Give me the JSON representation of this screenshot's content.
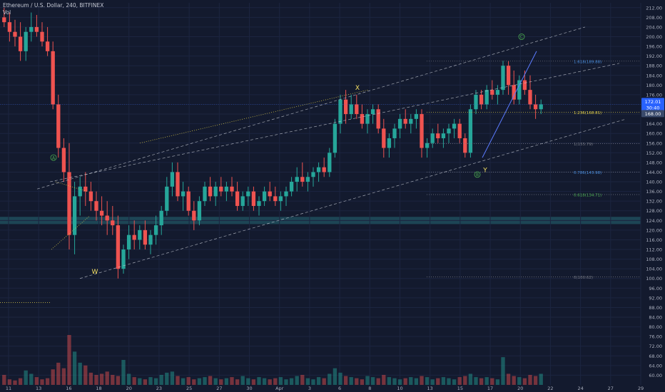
{
  "header": {
    "title": "Ethereum / U.S. Dollar, 240, BITFINEX",
    "indicator": "Vol"
  },
  "chart_data": {
    "type": "candlestick",
    "symbol": "Ethereum / U.S. Dollar",
    "interval": "240",
    "exchange": "BITFINEX",
    "ylim": [
      56,
      214
    ],
    "yticks": [
      60,
      64,
      68,
      72,
      76,
      80,
      84,
      88,
      92,
      96,
      100,
      104,
      108,
      112,
      116,
      120,
      124,
      128,
      132,
      136,
      140,
      144,
      148,
      152,
      156,
      160,
      164,
      168,
      172,
      176,
      180,
      184,
      188,
      192,
      196,
      200,
      204,
      208,
      212
    ],
    "xticks": [
      "11",
      "13",
      "16",
      "18",
      "20",
      "23",
      "25",
      "27",
      "30",
      "Apr",
      "3",
      "6",
      "8",
      "10",
      "13",
      "15",
      "17",
      "20",
      "22",
      "24",
      "27",
      "29"
    ],
    "current_price": "172.01",
    "countdown": "30:40",
    "price_label_2": "168.00",
    "candles_ohlc": [
      [
        208,
        212,
        204,
        206
      ],
      [
        206,
        210,
        198,
        202
      ],
      [
        202,
        207,
        196,
        200
      ],
      [
        200,
        206,
        190,
        194
      ],
      [
        194,
        204,
        190,
        202
      ],
      [
        202,
        210,
        198,
        204
      ],
      [
        204,
        209,
        200,
        202
      ],
      [
        202,
        206,
        196,
        198
      ],
      [
        198,
        204,
        192,
        194
      ],
      [
        194,
        198,
        170,
        172
      ],
      [
        172,
        176,
        150,
        154
      ],
      [
        154,
        158,
        140,
        144
      ],
      [
        144,
        156,
        112,
        118
      ],
      [
        118,
        140,
        110,
        134
      ],
      [
        134,
        142,
        126,
        138
      ],
      [
        138,
        144,
        130,
        136
      ],
      [
        136,
        140,
        128,
        132
      ],
      [
        132,
        136,
        124,
        128
      ],
      [
        128,
        134,
        122,
        126
      ],
      [
        126,
        132,
        118,
        124
      ],
      [
        124,
        130,
        118,
        122
      ],
      [
        122,
        126,
        100,
        104
      ],
      [
        104,
        114,
        102,
        112
      ],
      [
        112,
        122,
        108,
        118
      ],
      [
        118,
        124,
        112,
        116
      ],
      [
        116,
        122,
        112,
        120
      ],
      [
        120,
        124,
        112,
        114
      ],
      [
        114,
        120,
        110,
        118
      ],
      [
        118,
        126,
        114,
        122
      ],
      [
        122,
        130,
        118,
        128
      ],
      [
        128,
        142,
        126,
        138
      ],
      [
        138,
        148,
        134,
        144
      ],
      [
        144,
        148,
        132,
        134
      ],
      [
        134,
        140,
        128,
        136
      ],
      [
        136,
        138,
        126,
        128
      ],
      [
        128,
        132,
        120,
        124
      ],
      [
        124,
        134,
        122,
        132
      ],
      [
        132,
        140,
        130,
        138
      ],
      [
        138,
        142,
        132,
        134
      ],
      [
        134,
        140,
        130,
        138
      ],
      [
        138,
        142,
        134,
        136
      ],
      [
        136,
        140,
        132,
        138
      ],
      [
        138,
        142,
        134,
        136
      ],
      [
        136,
        140,
        128,
        130
      ],
      [
        130,
        136,
        128,
        134
      ],
      [
        134,
        138,
        130,
        136
      ],
      [
        136,
        138,
        128,
        130
      ],
      [
        130,
        134,
        126,
        132
      ],
      [
        132,
        138,
        130,
        136
      ],
      [
        136,
        140,
        132,
        134
      ],
      [
        134,
        138,
        130,
        132
      ],
      [
        132,
        136,
        128,
        134
      ],
      [
        134,
        138,
        130,
        136
      ],
      [
        136,
        142,
        134,
        140
      ],
      [
        140,
        146,
        136,
        142
      ],
      [
        142,
        148,
        138,
        140
      ],
      [
        140,
        144,
        136,
        142
      ],
      [
        142,
        146,
        138,
        144
      ],
      [
        144,
        148,
        140,
        146
      ],
      [
        146,
        150,
        142,
        144
      ],
      [
        144,
        154,
        142,
        152
      ],
      [
        152,
        166,
        150,
        164
      ],
      [
        164,
        176,
        160,
        174
      ],
      [
        174,
        178,
        164,
        168
      ],
      [
        168,
        176,
        166,
        172
      ],
      [
        172,
        176,
        166,
        168
      ],
      [
        168,
        172,
        162,
        164
      ],
      [
        164,
        170,
        160,
        168
      ],
      [
        168,
        172,
        164,
        170
      ],
      [
        170,
        172,
        160,
        162
      ],
      [
        162,
        166,
        150,
        154
      ],
      [
        154,
        160,
        150,
        158
      ],
      [
        158,
        164,
        154,
        162
      ],
      [
        162,
        168,
        158,
        166
      ],
      [
        166,
        170,
        162,
        164
      ],
      [
        164,
        168,
        160,
        166
      ],
      [
        166,
        170,
        162,
        168
      ],
      [
        168,
        170,
        150,
        154
      ],
      [
        154,
        158,
        150,
        156
      ],
      [
        156,
        162,
        154,
        160
      ],
      [
        160,
        164,
        156,
        158
      ],
      [
        158,
        162,
        154,
        160
      ],
      [
        160,
        164,
        156,
        162
      ],
      [
        162,
        166,
        158,
        164
      ],
      [
        164,
        166,
        156,
        158
      ],
      [
        158,
        160,
        150,
        152
      ],
      [
        152,
        172,
        150,
        170
      ],
      [
        170,
        178,
        168,
        176
      ],
      [
        176,
        178,
        170,
        172
      ],
      [
        172,
        180,
        170,
        178
      ],
      [
        178,
        182,
        174,
        176
      ],
      [
        176,
        180,
        172,
        178
      ],
      [
        178,
        190,
        176,
        188
      ],
      [
        188,
        190,
        176,
        180
      ],
      [
        180,
        186,
        172,
        174
      ],
      [
        174,
        184,
        172,
        182
      ],
      [
        182,
        186,
        176,
        178
      ],
      [
        178,
        184,
        170,
        172
      ],
      [
        172,
        176,
        166,
        170
      ],
      [
        170,
        174,
        168,
        172
      ]
    ],
    "volume": [
      18,
      10,
      8,
      12,
      26,
      20,
      14,
      10,
      12,
      28,
      40,
      30,
      90,
      60,
      40,
      35,
      22,
      18,
      20,
      24,
      18,
      16,
      45,
      20,
      14,
      12,
      10,
      14,
      12,
      18,
      22,
      24,
      16,
      12,
      14,
      10,
      12,
      14,
      16,
      12,
      10,
      12,
      14,
      10,
      16,
      12,
      10,
      14,
      12,
      10,
      12,
      14,
      10,
      12,
      16,
      18,
      12,
      10,
      14,
      12,
      20,
      30,
      22,
      16,
      14,
      12,
      10,
      16,
      14,
      12,
      18,
      14,
      12,
      10,
      12,
      14,
      12,
      16,
      14,
      10,
      12,
      14,
      12,
      10,
      14,
      16,
      20,
      14,
      12,
      14,
      12,
      10,
      50,
      20,
      16,
      14,
      12,
      18,
      16,
      20
    ],
    "annotations": [
      {
        "text": "W",
        "price": 103
      },
      {
        "text": "X",
        "price": 179
      },
      {
        "text": "Y",
        "price": 145
      },
      {
        "text": "A",
        "price": 150
      },
      {
        "text": "B",
        "price": 143
      },
      {
        "text": "C",
        "price": 200
      }
    ],
    "fib_levels": [
      {
        "label": "1.618(189.88)",
        "price": 189.88
      },
      {
        "label": "1.236(168.81)",
        "price": 168.81
      },
      {
        "label": "1(155.79)",
        "price": 155.79
      },
      {
        "label": "0.786(143.98)",
        "price": 143.98
      },
      {
        "label": "0.618(134.71)",
        "price": 134.71
      },
      {
        "label": "0(100.62)",
        "price": 100.62
      }
    ],
    "grid": true
  },
  "colors": {
    "background": "#131a2e",
    "up": "#26a69a",
    "down": "#ef5350",
    "grid": "#1c2540",
    "axis_text": "#a9aebd",
    "channel": "#cfd3dc",
    "fib": "#787b86",
    "wedge": "#e6d34a",
    "trend": "#5b7bff",
    "support_band": "#1f4a5a",
    "price_tag": "#2962ff",
    "fib_1618_text": "#4a90e2",
    "fib_1236_text": "#e6d34a",
    "fib_0618_text": "#4caf50",
    "fib_0786_text": "#4a90e2",
    "fib_1_text": "#787b86",
    "fib_0_text": "#787b86"
  }
}
